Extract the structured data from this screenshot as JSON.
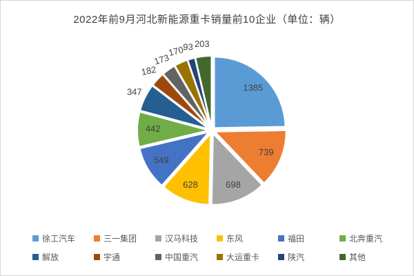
{
  "title": "2022年前9月河北新能源重卡销量前10企业（单位：辆）",
  "chart_data": {
    "type": "pie",
    "title": "2022年前9月河北新能源重卡销量前10企业（单位：辆）",
    "unit": "辆",
    "total": 5609,
    "legend_position": "bottom",
    "legend_rows": 2,
    "start_angle_deg": 0,
    "direction": "clockwise",
    "label_style": "value",
    "small_slice_outside_threshold_deg": 25,
    "label_rotations": [
      0,
      0,
      0,
      0,
      0,
      0,
      0,
      -12,
      -18,
      -14,
      0,
      0
    ],
    "categories": [
      "徐工汽车",
      "三一集团",
      "汉马科技",
      "东风",
      "福田",
      "北奔重汽",
      "解放",
      "宇通",
      "中国重汽",
      "大运重卡",
      "陕汽",
      "其他"
    ],
    "values": [
      1385,
      739,
      698,
      628,
      549,
      442,
      347,
      182,
      173,
      170,
      93,
      203
    ],
    "series": [
      {
        "name": "徐工汽车",
        "value": 1385,
        "color": "#5B9BD5"
      },
      {
        "name": "三一集团",
        "value": 739,
        "color": "#ED7D31"
      },
      {
        "name": "汉马科技",
        "value": 698,
        "color": "#A5A5A5"
      },
      {
        "name": "东风",
        "value": 628,
        "color": "#FFC000"
      },
      {
        "name": "福田",
        "value": 549,
        "color": "#4472C4"
      },
      {
        "name": "北奔重汽",
        "value": 442,
        "color": "#70AD47"
      },
      {
        "name": "解放",
        "value": 347,
        "color": "#255E91"
      },
      {
        "name": "宇通",
        "value": 182,
        "color": "#9E480E"
      },
      {
        "name": "中国重汽",
        "value": 173,
        "color": "#636363"
      },
      {
        "name": "大运重卡",
        "value": 170,
        "color": "#997300"
      },
      {
        "name": "陕汽",
        "value": 93,
        "color": "#264478"
      },
      {
        "name": "其他",
        "value": 203,
        "color": "#43682B"
      }
    ],
    "colors": {
      "title_text": "#404040",
      "label_text": "#404040",
      "legend_text": "#595959",
      "slice_border": "#ffffff",
      "background": "#ffffff"
    }
  }
}
